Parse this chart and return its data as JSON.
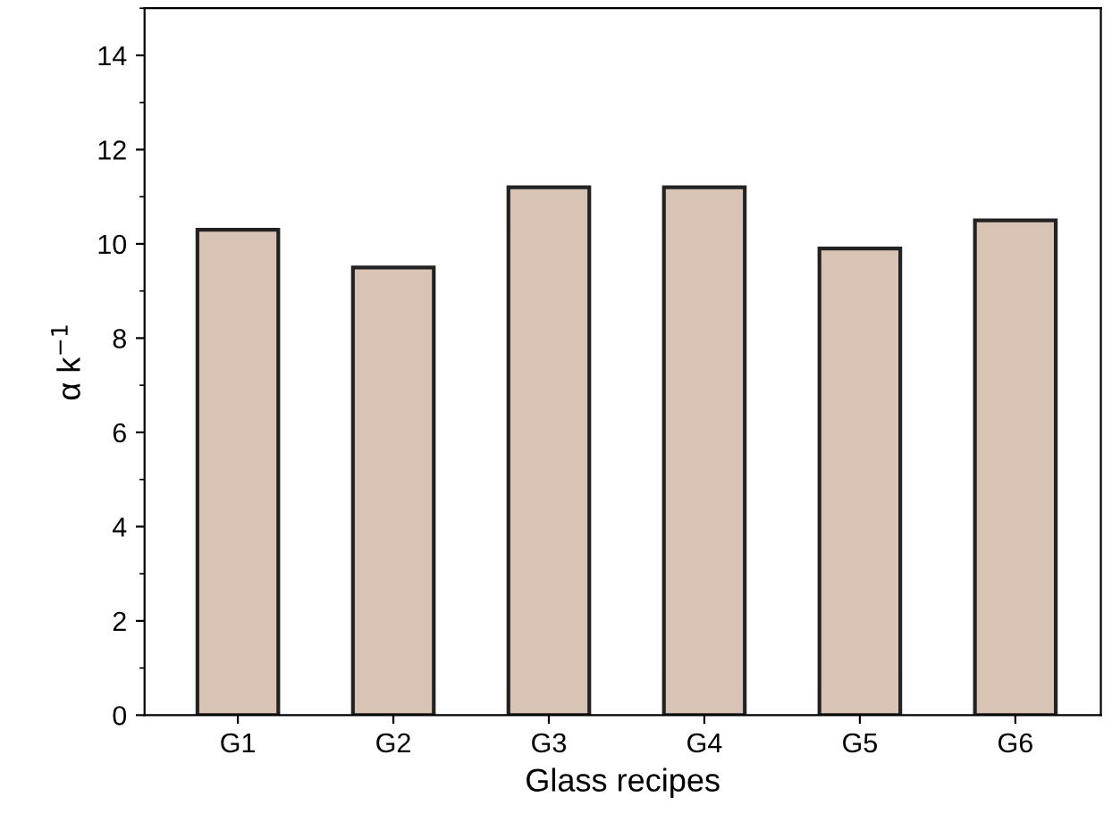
{
  "chart_data": {
    "type": "bar",
    "xlabel": "Glass recipes",
    "ylabel": "α k$^{−1}$",
    "categories": [
      "G1",
      "G2",
      "G3",
      "G4",
      "G5",
      "G6"
    ],
    "values": [
      10.3,
      9.5,
      11.2,
      11.2,
      9.9,
      10.5
    ],
    "color": "#d8c3b5",
    "ylim": [
      0,
      15
    ],
    "yticks": [
      0,
      2,
      4,
      6,
      8,
      10,
      12,
      14
    ],
    "grid": false
  }
}
